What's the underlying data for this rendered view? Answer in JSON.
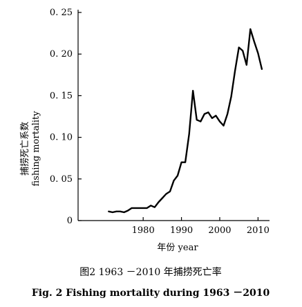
{
  "chart_data": {
    "type": "line",
    "xlabel": "年份 year",
    "ylabel_zh": "捕捞死亡系数",
    "ylabel_en": "fishing mortality",
    "xlim": [
      1963,
      2013
    ],
    "ylim": [
      0,
      0.25
    ],
    "xticks": [
      1980,
      1990,
      2000,
      2010
    ],
    "yticks": [
      0,
      0.05,
      0.1,
      0.15,
      0.2,
      0.25
    ],
    "ytick_labels": [
      "0",
      "0. 05",
      "0. 10",
      "0. 15",
      "0. 20",
      "0. 25"
    ],
    "xtick_labels": [
      "1980",
      "1990",
      "2000",
      "2010"
    ],
    "grid": false,
    "series": [
      {
        "x": [
          1971,
          1972,
          1973,
          1974,
          1975,
          1976,
          1977,
          1978,
          1979,
          1980,
          1981,
          1982,
          1983,
          1984,
          1985,
          1986,
          1987,
          1988,
          1989,
          1990,
          1991,
          1992,
          1993,
          1994,
          1995,
          1996,
          1997,
          1998,
          1999,
          2000,
          2001,
          2002,
          2003,
          2004,
          2005,
          2006,
          2007,
          2008,
          2009,
          2010,
          2011
        ],
        "values": [
          0.011,
          0.01,
          0.011,
          0.011,
          0.01,
          0.012,
          0.015,
          0.015,
          0.015,
          0.015,
          0.015,
          0.018,
          0.016,
          0.022,
          0.027,
          0.032,
          0.035,
          0.048,
          0.054,
          0.07,
          0.07,
          0.104,
          0.156,
          0.121,
          0.119,
          0.128,
          0.13,
          0.123,
          0.126,
          0.119,
          0.114,
          0.128,
          0.149,
          0.18,
          0.208,
          0.204,
          0.187,
          0.23,
          0.215,
          0.201,
          0.182
        ]
      }
    ]
  },
  "caption": {
    "zh": "图2   1963 －2010 年捕捞死亡率",
    "en": "Fig. 2    Fishing mortality during 1963 －2010"
  }
}
